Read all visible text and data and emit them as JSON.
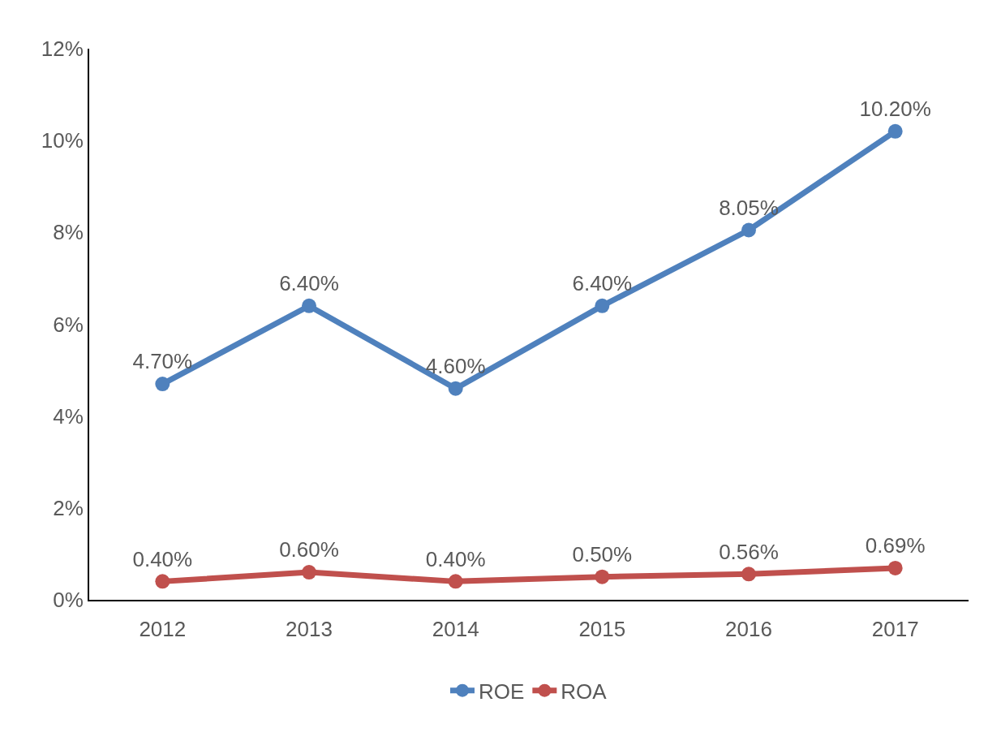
{
  "chart_data": {
    "type": "line",
    "categories": [
      "2012",
      "2013",
      "2014",
      "2015",
      "2016",
      "2017"
    ],
    "series": [
      {
        "name": "ROE",
        "color": "#4f81bd",
        "values": [
          4.7,
          6.4,
          4.6,
          6.4,
          8.05,
          10.2
        ],
        "value_labels": [
          "4.70%",
          "6.40%",
          "4.60%",
          "6.40%",
          "8.05%",
          "10.20%"
        ]
      },
      {
        "name": "ROA",
        "color": "#c0504d",
        "values": [
          0.4,
          0.6,
          0.4,
          0.5,
          0.56,
          0.69
        ],
        "value_labels": [
          "0.40%",
          "0.60%",
          "0.40%",
          "0.50%",
          "0.56%",
          "0.69%"
        ]
      }
    ],
    "ylim": [
      0,
      12
    ],
    "yticks": [
      {
        "value": 0,
        "label": "0%"
      },
      {
        "value": 2,
        "label": "2%"
      },
      {
        "value": 4,
        "label": "4%"
      },
      {
        "value": 6,
        "label": "6%"
      },
      {
        "value": 8,
        "label": "8%"
      },
      {
        "value": 10,
        "label": "10%"
      },
      {
        "value": 12,
        "label": "12%"
      }
    ],
    "grid": false,
    "legend": "bottom",
    "marker": "circle",
    "line_style": "solid"
  }
}
